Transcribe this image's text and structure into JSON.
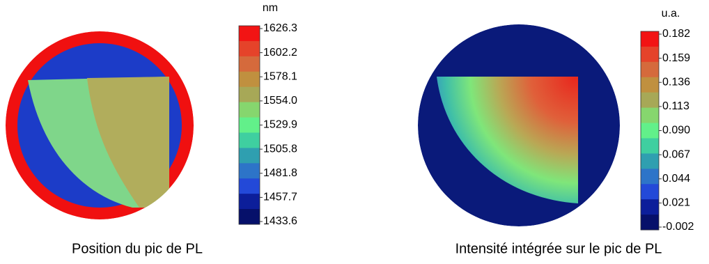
{
  "panels": [
    {
      "unit": "nm",
      "ticks": [
        "1626.3",
        "1602.2",
        "1578.1",
        "1554.0",
        "1529.9",
        "1505.8",
        "1481.8",
        "1457.7",
        "1433.6"
      ],
      "caption": "Position du pic de PL"
    },
    {
      "unit": "u.a.",
      "ticks": [
        "0.182",
        "0.159",
        "0.136",
        "0.113",
        "0.090",
        "0.067",
        "0.044",
        "0.021",
        "-0.002"
      ],
      "caption": "Intensité intégrée sur le pic de PL"
    }
  ]
}
